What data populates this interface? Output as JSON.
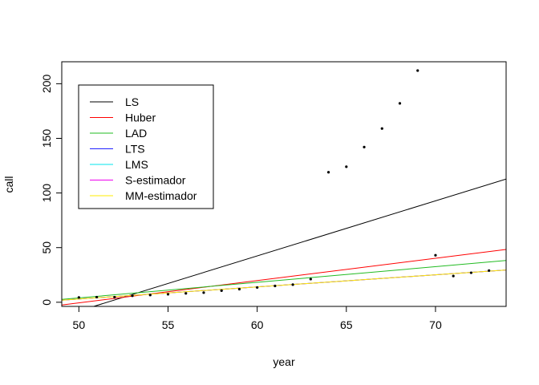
{
  "chart_data": {
    "type": "scatter",
    "title": "",
    "xlabel": "year",
    "ylabel": "call",
    "xlim": [
      49.04,
      73.96
    ],
    "ylim": [
      -3.8,
      220.1
    ],
    "x_ticks": [
      50,
      55,
      60,
      65,
      70
    ],
    "y_ticks": [
      0,
      50,
      100,
      150,
      200
    ],
    "grid": false,
    "legend_position": "top-left",
    "points": {
      "x": [
        50,
        51,
        52,
        53,
        54,
        55,
        56,
        57,
        58,
        59,
        60,
        61,
        62,
        63,
        64,
        65,
        66,
        67,
        68,
        69,
        70,
        71,
        72,
        73
      ],
      "y": [
        4.4,
        4.7,
        4.7,
        5.9,
        6.6,
        7.3,
        8.1,
        8.8,
        10.6,
        12.0,
        13.5,
        14.9,
        16.1,
        21.2,
        119.0,
        124.0,
        142.0,
        159.0,
        182.0,
        212.0,
        43.0,
        24.0,
        27.0,
        29.0
      ]
    },
    "series": [
      {
        "name": "LS",
        "color": "#000000",
        "intercept": -260.06,
        "slope": 5.041
      },
      {
        "name": "Huber",
        "color": "#ff0000",
        "intercept": -102.62,
        "slope": 2.0411
      },
      {
        "name": "LAD",
        "color": "#22bb22",
        "intercept": -67.53,
        "slope": 1.4297
      },
      {
        "name": "LTS",
        "color": "#2222ff",
        "intercept": -52.46,
        "slope": 1.1083
      },
      {
        "name": "LMS",
        "color": "#00e5ee",
        "intercept": -52.46,
        "slope": 1.1083
      },
      {
        "name": "S-estimador",
        "color": "#ee00ee",
        "intercept": -52.46,
        "slope": 1.1083
      },
      {
        "name": "MM-estimador",
        "color": "#ffee00",
        "intercept": -52.46,
        "slope": 1.1083
      }
    ]
  }
}
